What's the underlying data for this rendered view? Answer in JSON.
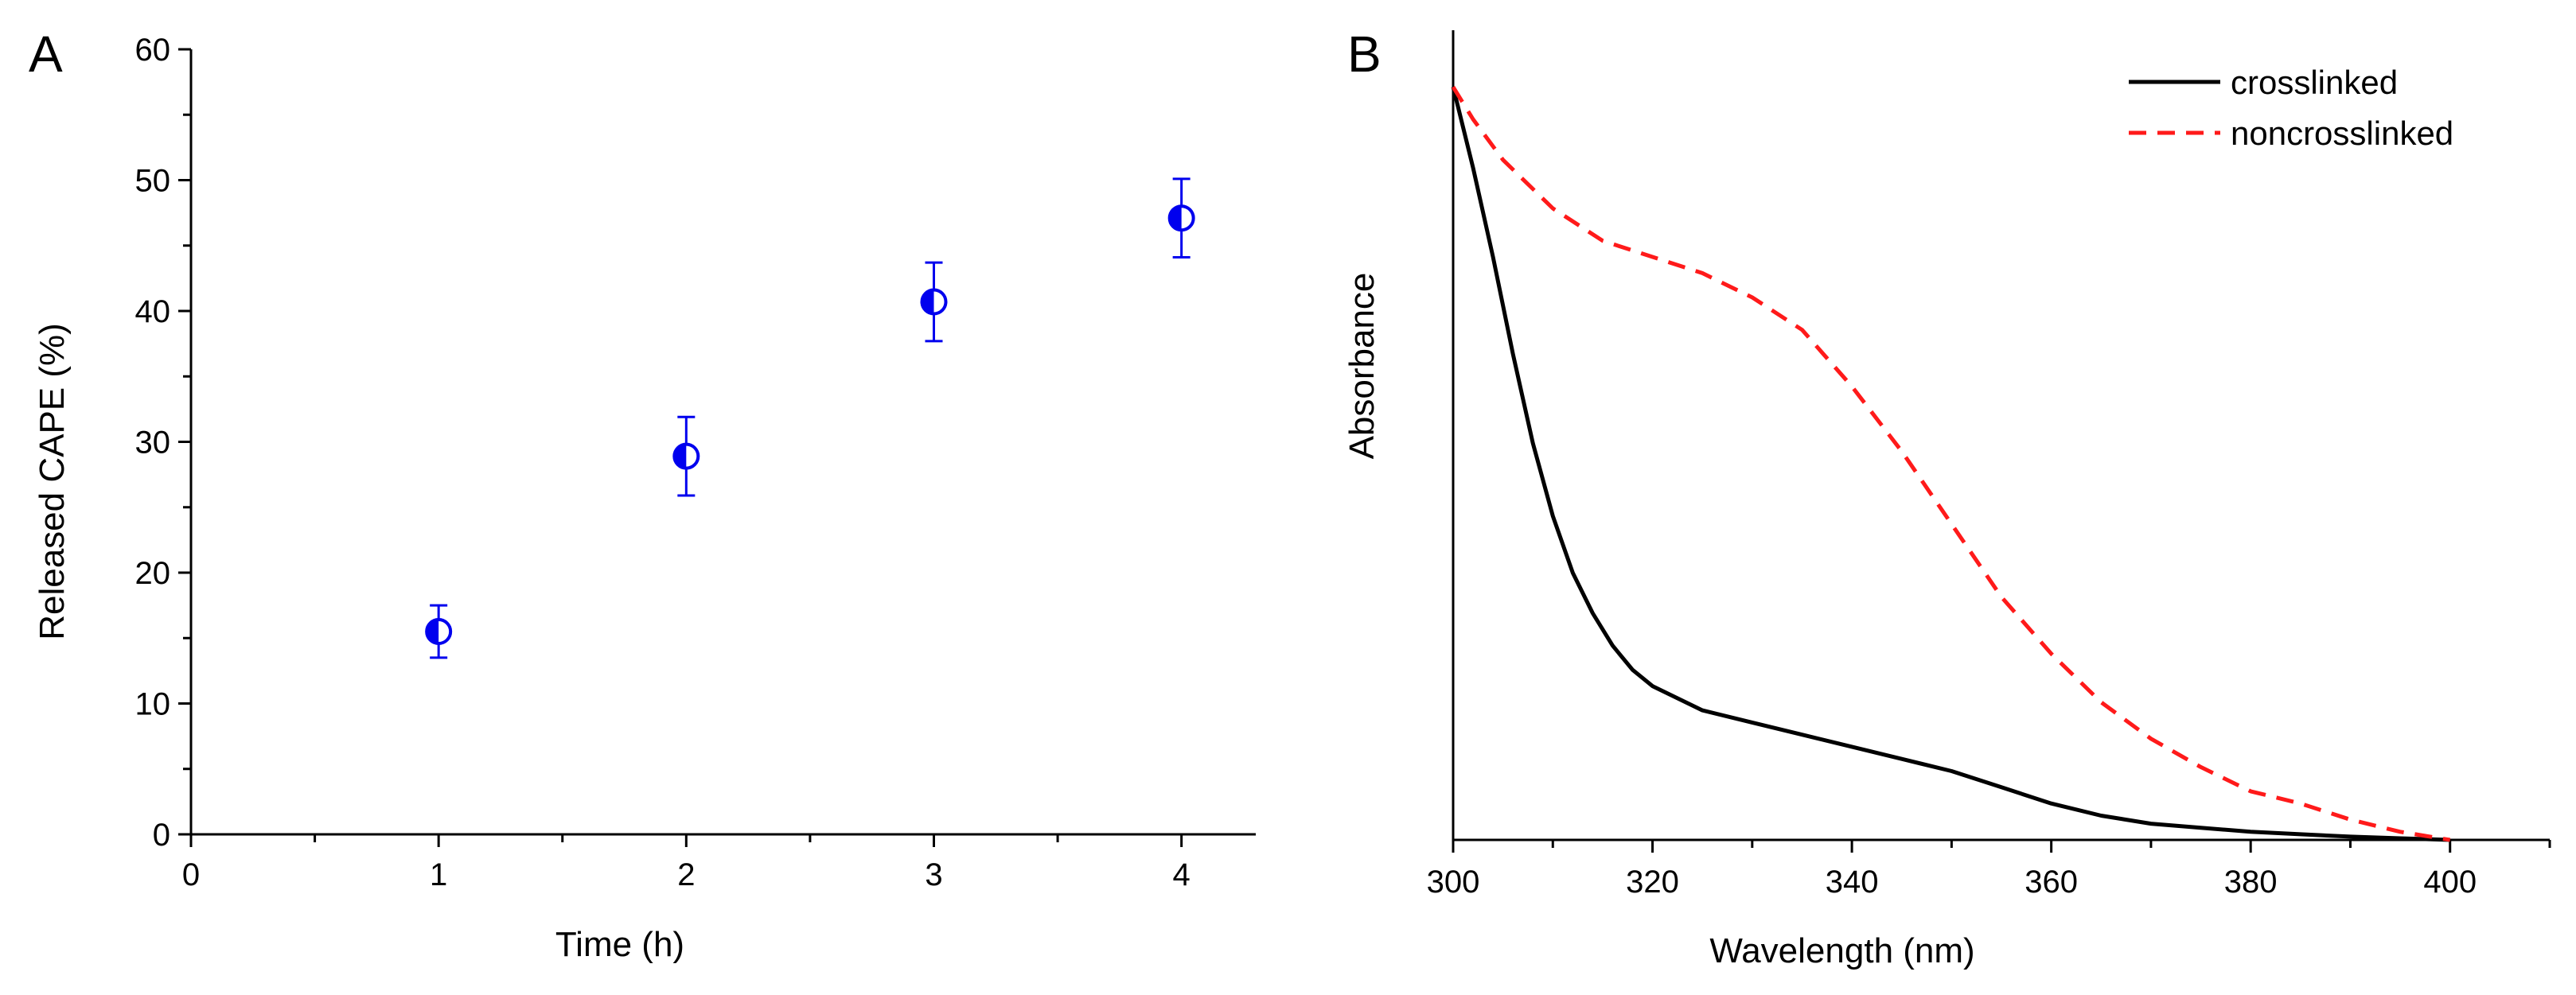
{
  "colors": {
    "axis": "#000000",
    "marker": "#0000ee",
    "crosslinked": "#000000",
    "noncrosslinked": "#ff1a1a"
  },
  "chart_data": [
    {
      "panel_label": "A",
      "type": "scatter",
      "title": "",
      "xlabel": "Time (h)",
      "ylabel": "Released CAPE (%)",
      "xlim": [
        0,
        4.3
      ],
      "ylim": [
        0,
        60
      ],
      "xticks": [
        "0",
        "1",
        "2",
        "3",
        "4"
      ],
      "yticks": [
        "0",
        "10",
        "20",
        "30",
        "40",
        "50",
        "60"
      ],
      "grid": false,
      "series": [
        {
          "name": "Released CAPE",
          "marker": "half-filled circle",
          "points": [
            {
              "x": 1,
              "y": 15.5,
              "err": 2.0
            },
            {
              "x": 2,
              "y": 28.9,
              "err": 3.0
            },
            {
              "x": 3,
              "y": 40.7,
              "err": 3.0
            },
            {
              "x": 4,
              "y": 47.1,
              "err": 3.0
            }
          ]
        }
      ]
    },
    {
      "panel_label": "B",
      "type": "line",
      "title": "",
      "xlabel": "Wavelength (nm)",
      "ylabel": "Absorbance",
      "xlim": [
        300,
        410
      ],
      "ylim": [
        0,
        1
      ],
      "xticks": [
        "300",
        "320",
        "340",
        "360",
        "380",
        "400"
      ],
      "yticks": [],
      "grid": false,
      "legend_position": "top-right",
      "series": [
        {
          "name": "crosslinked",
          "style": "solid",
          "x": [
            300,
            302,
            304,
            306,
            308,
            310,
            312,
            314,
            316,
            318,
            320,
            325,
            330,
            335,
            340,
            345,
            350,
            355,
            360,
            365,
            370,
            375,
            380,
            385,
            390,
            395,
            400
          ],
          "y": [
            0.93,
            0.83,
            0.72,
            0.6,
            0.49,
            0.4,
            0.33,
            0.28,
            0.24,
            0.21,
            0.19,
            0.16,
            0.145,
            0.13,
            0.115,
            0.1,
            0.085,
            0.065,
            0.045,
            0.03,
            0.02,
            0.015,
            0.01,
            0.007,
            0.004,
            0.002,
            0.0
          ]
        },
        {
          "name": "noncrosslinked",
          "style": "dashed",
          "x": [
            300,
            302,
            305,
            310,
            315,
            320,
            325,
            330,
            335,
            340,
            345,
            350,
            355,
            360,
            365,
            370,
            375,
            380,
            385,
            390,
            395,
            400
          ],
          "y": [
            0.93,
            0.89,
            0.84,
            0.78,
            0.74,
            0.72,
            0.7,
            0.67,
            0.63,
            0.56,
            0.48,
            0.39,
            0.3,
            0.23,
            0.17,
            0.125,
            0.09,
            0.06,
            0.045,
            0.025,
            0.01,
            0.0
          ]
        }
      ]
    }
  ]
}
